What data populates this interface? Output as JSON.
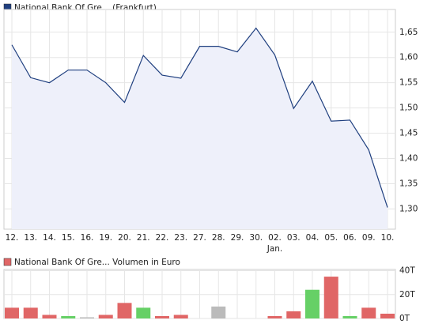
{
  "chart_data": [
    {
      "type": "line",
      "legend": "National Bank Of Gre... (Frankfurt)",
      "legend_color": "#1f3f7f",
      "categories": [
        "12.",
        "13.",
        "14.",
        "15.",
        "16.",
        "19.",
        "20.",
        "21.",
        "22.",
        "23.",
        "27.",
        "28.",
        "29.",
        "30.",
        "02.",
        "03.",
        "04.",
        "05.",
        "06.",
        "09.",
        "10."
      ],
      "month_labels": [
        null,
        null,
        null,
        null,
        null,
        null,
        null,
        null,
        null,
        null,
        null,
        null,
        null,
        null,
        "Jan.",
        null,
        null,
        null,
        null,
        null,
        null
      ],
      "values": [
        1.625,
        1.56,
        1.55,
        1.575,
        1.575,
        1.55,
        1.511,
        1.604,
        1.565,
        1.559,
        1.622,
        1.622,
        1.611,
        1.658,
        1.605,
        1.499,
        1.553,
        1.474,
        1.476,
        1.417,
        1.303
      ],
      "color": "#1f3f7f",
      "fill": "#eef0fa",
      "ylim": [
        1.26,
        1.695
      ],
      "yticks": [
        {
          "value": 1.3,
          "label": "1,30"
        },
        {
          "value": 1.35,
          "label": "1,35"
        },
        {
          "value": 1.4,
          "label": "1,40"
        },
        {
          "value": 1.45,
          "label": "1,45"
        },
        {
          "value": 1.5,
          "label": "1,50"
        },
        {
          "value": 1.55,
          "label": "1,55"
        },
        {
          "value": 1.6,
          "label": "1,60"
        },
        {
          "value": 1.65,
          "label": "1,65"
        }
      ],
      "grid": true
    },
    {
      "type": "bar",
      "legend": "National Bank Of Gre... Volumen in Euro",
      "legend_color": "#e06666",
      "values": [
        9,
        9,
        3,
        2,
        1,
        3,
        13,
        9,
        2,
        3,
        0,
        10,
        0,
        0,
        2,
        6,
        24,
        35,
        2,
        9,
        4
      ],
      "colors": [
        "#e06666",
        "#e06666",
        "#e06666",
        "#66d066",
        "#bbbbbb",
        "#e06666",
        "#e06666",
        "#66d066",
        "#e06666",
        "#e06666",
        "#e06666",
        "#bbbbbb",
        "#e06666",
        "#e06666",
        "#e06666",
        "#e06666",
        "#66d066",
        "#e06666",
        "#66d066",
        "#e06666",
        "#e06666"
      ],
      "ylim": [
        0,
        41
      ],
      "yticks": [
        {
          "value": 0,
          "label": "0T"
        },
        {
          "value": 20,
          "label": "20T"
        },
        {
          "value": 40,
          "label": "40T"
        }
      ],
      "grid": true
    }
  ]
}
